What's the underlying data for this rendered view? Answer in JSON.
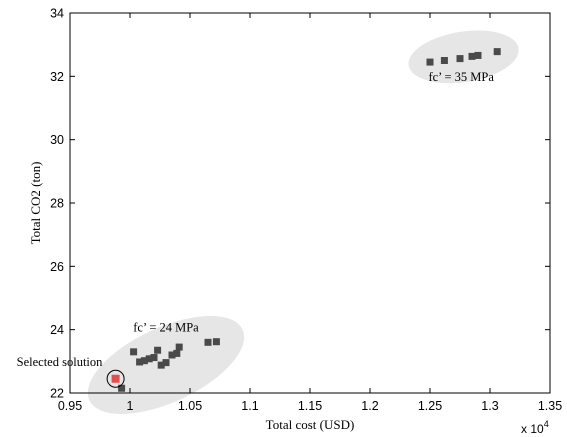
{
  "chart_data": {
    "type": "scatter",
    "title": "",
    "xlabel": "Total cost (USD)",
    "ylabel": "Total CO2 (ton)",
    "x_multiplier_label": "x 10",
    "x_multiplier_exponent": "4",
    "xlim": [
      9500,
      13500
    ],
    "ylim": [
      22,
      34
    ],
    "xticks": [
      9500,
      10000,
      10500,
      11000,
      11500,
      12000,
      12500,
      13000,
      13500
    ],
    "xtick_labels": [
      "0.95",
      "1",
      "1.05",
      "1.1",
      "1.15",
      "1.2",
      "1.25",
      "1.3",
      "1.35"
    ],
    "yticks": [
      22,
      24,
      26,
      28,
      30,
      32,
      34
    ],
    "ytick_labels": [
      "22",
      "24",
      "26",
      "28",
      "30",
      "32",
      "34"
    ],
    "grid": false,
    "colors": {
      "points": "#4a4a4a",
      "selected": "#e05050",
      "cluster_fill": "#e6e6e6"
    },
    "series": [
      {
        "points": [
          [
            9930,
            22.15
          ],
          [
            10030,
            23.3
          ],
          [
            10080,
            22.98
          ],
          [
            10120,
            23.02
          ],
          [
            10160,
            23.08
          ],
          [
            10200,
            23.12
          ],
          [
            10230,
            23.35
          ],
          [
            10260,
            22.88
          ],
          [
            10300,
            22.96
          ],
          [
            10350,
            23.2
          ],
          [
            10390,
            23.25
          ],
          [
            10410,
            23.45
          ],
          [
            10650,
            23.6
          ],
          [
            10720,
            23.62
          ],
          [
            12500,
            32.45
          ],
          [
            12620,
            32.5
          ],
          [
            12750,
            32.56
          ],
          [
            12850,
            32.63
          ],
          [
            12900,
            32.66
          ],
          [
            13060,
            32.78
          ]
        ]
      }
    ],
    "selected_point": {
      "x": 9880,
      "y": 22.45
    },
    "annotations": [
      {
        "text": "fc’ = 35 MPa",
        "x": 12760,
        "y": 31.85
      },
      {
        "text": "fc’ = 24 MPa",
        "x": 10300,
        "y": 23.95
      },
      {
        "text": "Selected solution",
        "x": 9770,
        "y": 22.85
      }
    ]
  }
}
